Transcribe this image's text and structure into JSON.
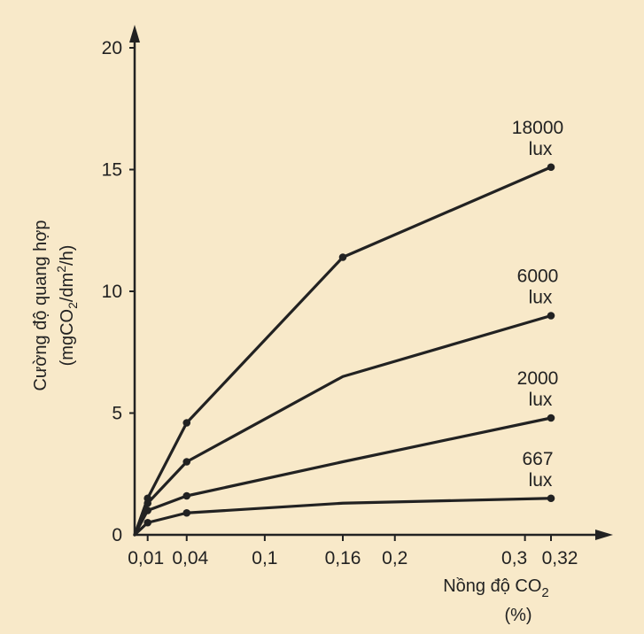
{
  "chart_data": {
    "type": "line",
    "title": "",
    "ylabel": {
      "line1": "Cường độ quang hợp",
      "line2_pre": "(mgCO",
      "line2_sub": "2",
      "line2_mid": "/dm",
      "line2_sup": "2",
      "line2_post": "/h)"
    },
    "xlabel": {
      "line1_pre": "Nồng độ CO",
      "line1_sub": "2",
      "line2": "(%)"
    },
    "xlim": [
      0,
      0.35
    ],
    "ylim": [
      0,
      20
    ],
    "x_ticks": [
      {
        "value": 0.01,
        "label": "0,01"
      },
      {
        "value": 0.04,
        "label": "0,04"
      },
      {
        "value": 0.1,
        "label": "0,1"
      },
      {
        "value": 0.16,
        "label": "0,16"
      },
      {
        "value": 0.2,
        "label": "0,2"
      },
      {
        "value": 0.3,
        "label": "0,3"
      },
      {
        "value": 0.32,
        "label": "0,32"
      }
    ],
    "y_ticks": [
      {
        "value": 0,
        "label": "0"
      },
      {
        "value": 5,
        "label": "5"
      },
      {
        "value": 10,
        "label": "10"
      },
      {
        "value": 15,
        "label": "15"
      },
      {
        "value": 20,
        "label": "20"
      }
    ],
    "grid": false,
    "series": [
      {
        "name": "18000 lux",
        "label_line1": "18000",
        "label_line2": "lux",
        "points": [
          {
            "x": 0,
            "y": 0,
            "marker": false
          },
          {
            "x": 0.01,
            "y": 1.5,
            "marker": true
          },
          {
            "x": 0.04,
            "y": 4.6,
            "marker": true
          },
          {
            "x": 0.16,
            "y": 11.4,
            "marker": true
          },
          {
            "x": 0.32,
            "y": 15.1,
            "marker": true
          }
        ]
      },
      {
        "name": "6000 lux",
        "label_line1": "6000",
        "label_line2": "lux",
        "points": [
          {
            "x": 0,
            "y": 0,
            "marker": false
          },
          {
            "x": 0.01,
            "y": 1.3,
            "marker": true
          },
          {
            "x": 0.04,
            "y": 3.0,
            "marker": true
          },
          {
            "x": 0.16,
            "y": 6.5,
            "marker": false
          },
          {
            "x": 0.32,
            "y": 9.0,
            "marker": true
          }
        ]
      },
      {
        "name": "2000 lux",
        "label_line1": "2000",
        "label_line2": "lux",
        "points": [
          {
            "x": 0,
            "y": 0,
            "marker": false
          },
          {
            "x": 0.01,
            "y": 1.0,
            "marker": true
          },
          {
            "x": 0.04,
            "y": 1.6,
            "marker": true
          },
          {
            "x": 0.16,
            "y": 3.0,
            "marker": false
          },
          {
            "x": 0.32,
            "y": 4.8,
            "marker": true
          }
        ]
      },
      {
        "name": "667 lux",
        "label_line1": "667",
        "label_line2": "lux",
        "points": [
          {
            "x": 0,
            "y": 0,
            "marker": false
          },
          {
            "x": 0.01,
            "y": 0.5,
            "marker": true
          },
          {
            "x": 0.04,
            "y": 0.9,
            "marker": true
          },
          {
            "x": 0.16,
            "y": 1.3,
            "marker": false
          },
          {
            "x": 0.32,
            "y": 1.5,
            "marker": true
          }
        ]
      }
    ],
    "colors": {
      "background": "#f8e9c9",
      "line": "#222222"
    }
  }
}
